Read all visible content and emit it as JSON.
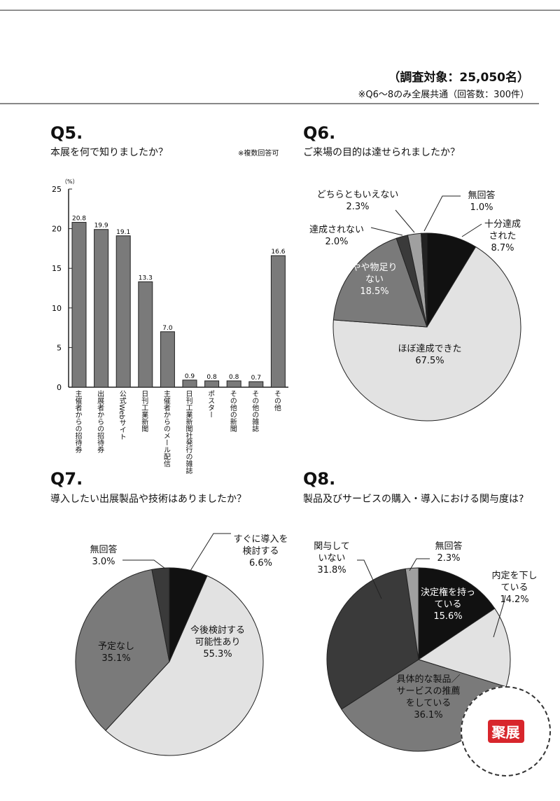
{
  "header": {
    "survey_target": "（調査対象：25,050名）",
    "note": "※Q6～8のみ全展共通（回答数：300件）"
  },
  "logo": {
    "text": "聚展"
  },
  "chart_data": [
    {
      "id": "q5",
      "type": "bar",
      "qnum": "Q5.",
      "title": "本展を何で知りましたか？",
      "note": "※複数回答可",
      "ylabel": "（%）",
      "ylim": [
        0,
        25
      ],
      "yticks": [
        "0",
        "5",
        "10",
        "15",
        "20",
        "25"
      ],
      "categories": [
        "主催者からの招待券",
        "出展者からの招待券",
        "公式Webサイト",
        "日刊工業新聞",
        "主催者からのメール配信",
        "日刊工業新聞社発行の雑誌",
        "ポスター",
        "その他の新聞",
        "その他の雑誌",
        "その他"
      ],
      "values": [
        20.8,
        19.9,
        19.1,
        13.3,
        7.0,
        0.9,
        0.8,
        0.8,
        0.7,
        16.6
      ],
      "value_labels": [
        "20.8",
        "19.9",
        "19.1",
        "13.3",
        "7.0",
        "0.9",
        "0.8",
        "0.8",
        "0.7",
        "16.6"
      ]
    },
    {
      "id": "q6",
      "type": "pie",
      "qnum": "Q6.",
      "title": "ご来場の目的は達せられましたか？",
      "slices": [
        {
          "label": "十分達成された",
          "pct": "8.7%",
          "value": 8.7,
          "color": "#111111"
        },
        {
          "label": "ほぼ達成できた",
          "pct": "67.5%",
          "value": 67.5,
          "color": "#e2e2e2"
        },
        {
          "label": "やや物足りない",
          "pct": "18.5%",
          "value": 18.5,
          "color": "#7a7a7a"
        },
        {
          "label": "達成されない",
          "pct": "2.0%",
          "value": 2.0,
          "color": "#3a3a3a"
        },
        {
          "label": "どちらともいえない",
          "pct": "2.3%",
          "value": 2.3,
          "color": "#a0a0a0"
        },
        {
          "label": "無回答",
          "pct": "1.0%",
          "value": 1.0,
          "color": "#222222"
        }
      ]
    },
    {
      "id": "q7",
      "type": "pie",
      "qnum": "Q7.",
      "title": "導入したい出展製品や技術はありましたか？",
      "slices": [
        {
          "label": "すぐに導入を検討する",
          "pct": "6.6%",
          "value": 6.6,
          "color": "#111111"
        },
        {
          "label": "今後検討する可能性あり",
          "pct": "55.3%",
          "value": 55.3,
          "color": "#e2e2e2"
        },
        {
          "label": "予定なし",
          "pct": "35.1%",
          "value": 35.1,
          "color": "#7a7a7a"
        },
        {
          "label": "無回答",
          "pct": "3.0%",
          "value": 3.0,
          "color": "#3a3a3a"
        }
      ]
    },
    {
      "id": "q8",
      "type": "pie",
      "qnum": "Q8.",
      "title": "製品及びサービスの購入・導入における関与度は?",
      "slices": [
        {
          "label": "決定権を持っている",
          "pct": "15.6%",
          "value": 15.6,
          "color": "#111111"
        },
        {
          "label": "内定を下している",
          "pct": "14.2%",
          "value": 14.2,
          "color": "#e2e2e2"
        },
        {
          "label": "具体的な製品／サービスの推薦をしている",
          "pct": "36.1%",
          "value": 36.1,
          "color": "#7a7a7a"
        },
        {
          "label": "関与していない",
          "pct": "31.8%",
          "value": 31.8,
          "color": "#3a3a3a"
        },
        {
          "label": "無回答",
          "pct": "2.3%",
          "value": 2.3,
          "color": "#a0a0a0"
        }
      ]
    }
  ]
}
